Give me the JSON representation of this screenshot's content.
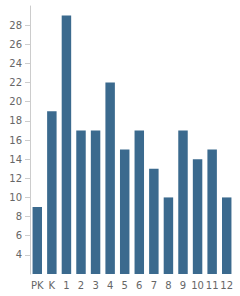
{
  "chart_data": {
    "type": "bar",
    "categories": [
      "PK",
      "K",
      "1",
      "2",
      "3",
      "4",
      "5",
      "6",
      "7",
      "8",
      "9",
      "10",
      "11",
      "12"
    ],
    "values": [
      9,
      19,
      29,
      17,
      17,
      22,
      15,
      17,
      13,
      10,
      17,
      14,
      15,
      10
    ],
    "color": "#3b6a8e",
    "ylim": [
      2,
      30
    ],
    "yticks": [
      4,
      6,
      8,
      10,
      12,
      14,
      16,
      18,
      20,
      22,
      24,
      26,
      28
    ],
    "grid": false
  }
}
